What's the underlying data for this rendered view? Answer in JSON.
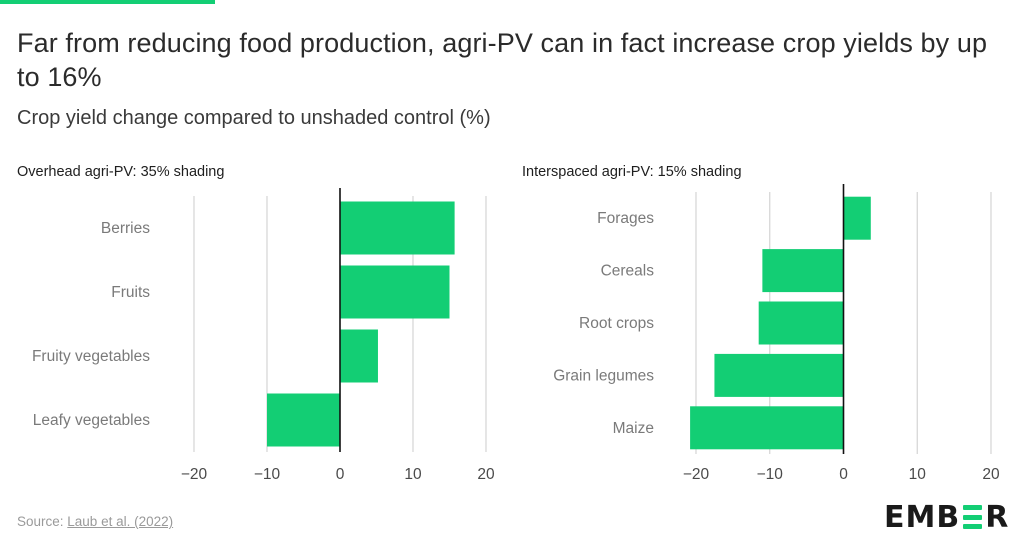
{
  "title": "Far from reducing food production, agri-PV can in fact increase crop yields by up to 16%",
  "subtitle": "Crop yield change compared to unshaded control (%)",
  "source": {
    "prefix": "Source: ",
    "link_text": "Laub et al. (2022)"
  },
  "logo": {
    "text": "EMBER",
    "left_part": "EMB",
    "right_part": "R",
    "accent_color": "#13ce74"
  },
  "colors": {
    "bar": "#13ce74",
    "grid": "#d4d4d4",
    "zero_line": "#111111",
    "accent_bar": "#13ce74"
  },
  "chart_data": [
    {
      "type": "bar",
      "orientation": "horizontal",
      "title": "Overhead agri-PV: 35% shading",
      "categories": [
        "Berries",
        "Fruits",
        "Fruity vegetables",
        "Leafy vegetables"
      ],
      "values": [
        15.7,
        15.0,
        5.2,
        -10.0
      ],
      "xlim": [
        -20,
        20
      ],
      "xticks": [
        -20,
        -10,
        0,
        10,
        20
      ],
      "tick_labels": [
        "−20",
        "−10",
        "0",
        "10",
        "20"
      ],
      "grid": true
    },
    {
      "type": "bar",
      "orientation": "horizontal",
      "title": "Interspaced agri-PV: 15% shading",
      "categories": [
        "Forages",
        "Cereals",
        "Root crops",
        "Grain legumes",
        "Maize"
      ],
      "values": [
        3.7,
        -11.0,
        -11.5,
        -17.5,
        -20.8
      ],
      "xlim": [
        -20,
        20
      ],
      "xticks": [
        -20,
        -10,
        0,
        10,
        20
      ],
      "tick_labels": [
        "−20",
        "−10",
        "0",
        "10",
        "20"
      ],
      "grid": true
    }
  ]
}
